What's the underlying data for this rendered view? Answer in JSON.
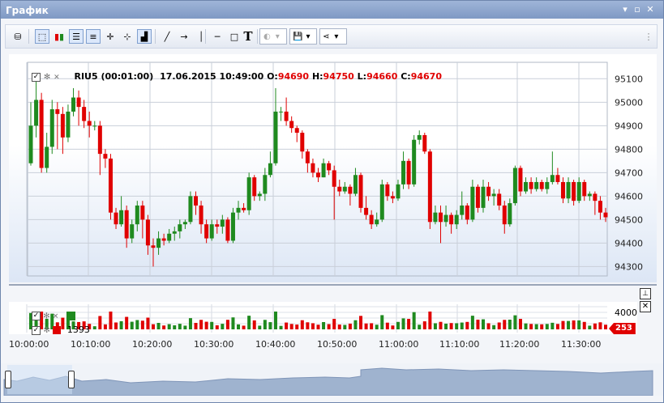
{
  "window": {
    "title": "График"
  },
  "toolbar": {
    "text_tool_label": "T"
  },
  "legend": {
    "symbol_label": "RIU5 (00:01:00)",
    "datetime": "17.06.2015 10:49:00",
    "o_label": "O:",
    "o_value": "94690",
    "h_label": "H:",
    "h_value": "94750",
    "l_label": "L:",
    "l_value": "94660",
    "c_label": "C:",
    "c_value": "94670"
  },
  "volume": {
    "axis_label": "4000",
    "legend_value": "1393",
    "current_tag": "253"
  },
  "chart_data": {
    "type": "candlestick",
    "price_ticks": [
      95100,
      95000,
      94900,
      94800,
      94700,
      94600,
      94500,
      94400,
      94300
    ],
    "ylim": [
      94260,
      95170
    ],
    "time_ticks": [
      "10:00:00",
      "10:10:00",
      "10:20:00",
      "10:30:00",
      "10:40:00",
      "10:50:00",
      "11:00:00",
      "11:10:00",
      "11:20:00",
      "11:30:00"
    ],
    "colors": {
      "up": "#1f8a1f",
      "down": "#e00000"
    },
    "candles": [
      {
        "o": 94740,
        "c": 94900,
        "h": 95000,
        "l": 94730
      },
      {
        "o": 94900,
        "c": 95010,
        "h": 95100,
        "l": 94850
      },
      {
        "o": 95010,
        "c": 94720,
        "h": 95040,
        "l": 94700
      },
      {
        "o": 94720,
        "c": 94810,
        "h": 94870,
        "l": 94700
      },
      {
        "o": 94810,
        "c": 94970,
        "h": 95010,
        "l": 94780
      },
      {
        "o": 94970,
        "c": 94950,
        "h": 95000,
        "l": 94800
      },
      {
        "o": 94950,
        "c": 94850,
        "h": 94980,
        "l": 94780
      },
      {
        "o": 94850,
        "c": 94960,
        "h": 94990,
        "l": 94830
      },
      {
        "o": 94960,
        "c": 95020,
        "h": 95060,
        "l": 94940
      },
      {
        "o": 95020,
        "c": 94980,
        "h": 95050,
        "l": 94900
      },
      {
        "o": 94980,
        "c": 94920,
        "h": 95010,
        "l": 94890
      },
      {
        "o": 94920,
        "c": 94900,
        "h": 94960,
        "l": 94850
      },
      {
        "o": 94900,
        "c": 94900,
        "h": 94920,
        "l": 94880
      },
      {
        "o": 94900,
        "c": 94780,
        "h": 94920,
        "l": 94690
      },
      {
        "o": 94780,
        "c": 94760,
        "h": 94800,
        "l": 94720
      },
      {
        "o": 94760,
        "c": 94530,
        "h": 94780,
        "l": 94500
      },
      {
        "o": 94530,
        "c": 94480,
        "h": 94550,
        "l": 94460
      },
      {
        "o": 94480,
        "c": 94540,
        "h": 94600,
        "l": 94470
      },
      {
        "o": 94540,
        "c": 94420,
        "h": 94560,
        "l": 94380
      },
      {
        "o": 94420,
        "c": 94480,
        "h": 94500,
        "l": 94400
      },
      {
        "o": 94480,
        "c": 94560,
        "h": 94580,
        "l": 94450
      },
      {
        "o": 94560,
        "c": 94500,
        "h": 94580,
        "l": 94420
      },
      {
        "o": 94500,
        "c": 94390,
        "h": 94520,
        "l": 94350
      },
      {
        "o": 94390,
        "c": 94380,
        "h": 94420,
        "l": 94300
      },
      {
        "o": 94380,
        "c": 94420,
        "h": 94450,
        "l": 94350
      },
      {
        "o": 94420,
        "c": 94410,
        "h": 94440,
        "l": 94390
      },
      {
        "o": 94410,
        "c": 94440,
        "h": 94460,
        "l": 94400
      },
      {
        "o": 94440,
        "c": 94450,
        "h": 94470,
        "l": 94410
      },
      {
        "o": 94450,
        "c": 94480,
        "h": 94500,
        "l": 94420
      },
      {
        "o": 94480,
        "c": 94490,
        "h": 94500,
        "l": 94460
      },
      {
        "o": 94490,
        "c": 94600,
        "h": 94620,
        "l": 94480
      },
      {
        "o": 94600,
        "c": 94560,
        "h": 94620,
        "l": 94520
      },
      {
        "o": 94560,
        "c": 94480,
        "h": 94580,
        "l": 94440
      },
      {
        "o": 94480,
        "c": 94420,
        "h": 94500,
        "l": 94400
      },
      {
        "o": 94420,
        "c": 94480,
        "h": 94500,
        "l": 94410
      },
      {
        "o": 94480,
        "c": 94470,
        "h": 94500,
        "l": 94440
      },
      {
        "o": 94470,
        "c": 94500,
        "h": 94520,
        "l": 94440
      },
      {
        "o": 94500,
        "c": 94410,
        "h": 94510,
        "l": 94400
      },
      {
        "o": 94410,
        "c": 94530,
        "h": 94550,
        "l": 94400
      },
      {
        "o": 94530,
        "c": 94550,
        "h": 94580,
        "l": 94500
      },
      {
        "o": 94550,
        "c": 94540,
        "h": 94570,
        "l": 94530
      },
      {
        "o": 94540,
        "c": 94680,
        "h": 94700,
        "l": 94520
      },
      {
        "o": 94680,
        "c": 94600,
        "h": 94690,
        "l": 94580
      },
      {
        "o": 94600,
        "c": 94610,
        "h": 94620,
        "l": 94580
      },
      {
        "o": 94610,
        "c": 94690,
        "h": 94720,
        "l": 94580
      },
      {
        "o": 94690,
        "c": 94740,
        "h": 94790,
        "l": 94680
      },
      {
        "o": 94740,
        "c": 94960,
        "h": 95060,
        "l": 94730
      },
      {
        "o": 94960,
        "c": 94960,
        "h": 94980,
        "l": 94920
      },
      {
        "o": 94960,
        "c": 94920,
        "h": 95020,
        "l": 94900
      },
      {
        "o": 94920,
        "c": 94890,
        "h": 94940,
        "l": 94870
      },
      {
        "o": 94890,
        "c": 94870,
        "h": 94900,
        "l": 94830
      },
      {
        "o": 94870,
        "c": 94790,
        "h": 94880,
        "l": 94760
      },
      {
        "o": 94790,
        "c": 94740,
        "h": 94800,
        "l": 94700
      },
      {
        "o": 94740,
        "c": 94700,
        "h": 94760,
        "l": 94680
      },
      {
        "o": 94700,
        "c": 94680,
        "h": 94720,
        "l": 94660
      },
      {
        "o": 94680,
        "c": 94740,
        "h": 94760,
        "l": 94680
      },
      {
        "o": 94740,
        "c": 94710,
        "h": 94750,
        "l": 94690
      },
      {
        "o": 94710,
        "c": 94640,
        "h": 94730,
        "l": 94500
      },
      {
        "o": 94640,
        "c": 94620,
        "h": 94670,
        "l": 94600
      },
      {
        "o": 94620,
        "c": 94640,
        "h": 94660,
        "l": 94610
      },
      {
        "o": 94640,
        "c": 94610,
        "h": 94650,
        "l": 94560
      },
      {
        "o": 94610,
        "c": 94690,
        "h": 94720,
        "l": 94600
      },
      {
        "o": 94690,
        "c": 94550,
        "h": 94700,
        "l": 94530
      },
      {
        "o": 94550,
        "c": 94520,
        "h": 94600,
        "l": 94500
      },
      {
        "o": 94520,
        "c": 94480,
        "h": 94540,
        "l": 94460
      },
      {
        "o": 94480,
        "c": 94500,
        "h": 94530,
        "l": 94470
      },
      {
        "o": 94500,
        "c": 94650,
        "h": 94670,
        "l": 94490
      },
      {
        "o": 94650,
        "c": 94600,
        "h": 94660,
        "l": 94580
      },
      {
        "o": 94600,
        "c": 94590,
        "h": 94620,
        "l": 94570
      },
      {
        "o": 94590,
        "c": 94650,
        "h": 94670,
        "l": 94580
      },
      {
        "o": 94650,
        "c": 94750,
        "h": 94790,
        "l": 94630
      },
      {
        "o": 94750,
        "c": 94650,
        "h": 94760,
        "l": 94630
      },
      {
        "o": 94650,
        "c": 94840,
        "h": 94860,
        "l": 94640
      },
      {
        "o": 94840,
        "c": 94860,
        "h": 94880,
        "l": 94820
      },
      {
        "o": 94860,
        "c": 94790,
        "h": 94870,
        "l": 94780
      },
      {
        "o": 94790,
        "c": 94490,
        "h": 94800,
        "l": 94460
      },
      {
        "o": 94490,
        "c": 94530,
        "h": 94560,
        "l": 94480
      },
      {
        "o": 94530,
        "c": 94490,
        "h": 94560,
        "l": 94400
      },
      {
        "o": 94490,
        "c": 94520,
        "h": 94560,
        "l": 94470
      },
      {
        "o": 94520,
        "c": 94480,
        "h": 94530,
        "l": 94440
      },
      {
        "o": 94480,
        "c": 94520,
        "h": 94540,
        "l": 94460
      },
      {
        "o": 94520,
        "c": 94560,
        "h": 94620,
        "l": 94500
      },
      {
        "o": 94560,
        "c": 94500,
        "h": 94570,
        "l": 94480
      },
      {
        "o": 94500,
        "c": 94640,
        "h": 94670,
        "l": 94490
      },
      {
        "o": 94640,
        "c": 94550,
        "h": 94650,
        "l": 94530
      },
      {
        "o": 94550,
        "c": 94640,
        "h": 94670,
        "l": 94530
      },
      {
        "o": 94640,
        "c": 94600,
        "h": 94660,
        "l": 94580
      },
      {
        "o": 94600,
        "c": 94610,
        "h": 94630,
        "l": 94560
      },
      {
        "o": 94610,
        "c": 94560,
        "h": 94630,
        "l": 94540
      },
      {
        "o": 94560,
        "c": 94480,
        "h": 94580,
        "l": 94440
      },
      {
        "o": 94480,
        "c": 94570,
        "h": 94590,
        "l": 94470
      },
      {
        "o": 94570,
        "c": 94720,
        "h": 94730,
        "l": 94560
      },
      {
        "o": 94720,
        "c": 94620,
        "h": 94730,
        "l": 94600
      },
      {
        "o": 94620,
        "c": 94660,
        "h": 94680,
        "l": 94610
      },
      {
        "o": 94660,
        "c": 94630,
        "h": 94680,
        "l": 94610
      },
      {
        "o": 94630,
        "c": 94660,
        "h": 94680,
        "l": 94620
      },
      {
        "o": 94660,
        "c": 94630,
        "h": 94670,
        "l": 94620
      },
      {
        "o": 94630,
        "c": 94660,
        "h": 94680,
        "l": 94610
      },
      {
        "o": 94660,
        "c": 94690,
        "h": 94790,
        "l": 94650
      },
      {
        "o": 94690,
        "c": 94660,
        "h": 94720,
        "l": 94650
      },
      {
        "o": 94660,
        "c": 94590,
        "h": 94680,
        "l": 94570
      },
      {
        "o": 94590,
        "c": 94660,
        "h": 94680,
        "l": 94570
      },
      {
        "o": 94660,
        "c": 94580,
        "h": 94670,
        "l": 94560
      },
      {
        "o": 94580,
        "c": 94660,
        "h": 94680,
        "l": 94570
      },
      {
        "o": 94660,
        "c": 94600,
        "h": 94670,
        "l": 94580
      },
      {
        "o": 94600,
        "c": 94610,
        "h": 94620,
        "l": 94580
      },
      {
        "o": 94610,
        "c": 94580,
        "h": 94620,
        "l": 94520
      },
      {
        "o": 94580,
        "c": 94530,
        "h": 94600,
        "l": 94500
      },
      {
        "o": 94530,
        "c": 94510,
        "h": 94550,
        "l": 94490
      }
    ]
  }
}
